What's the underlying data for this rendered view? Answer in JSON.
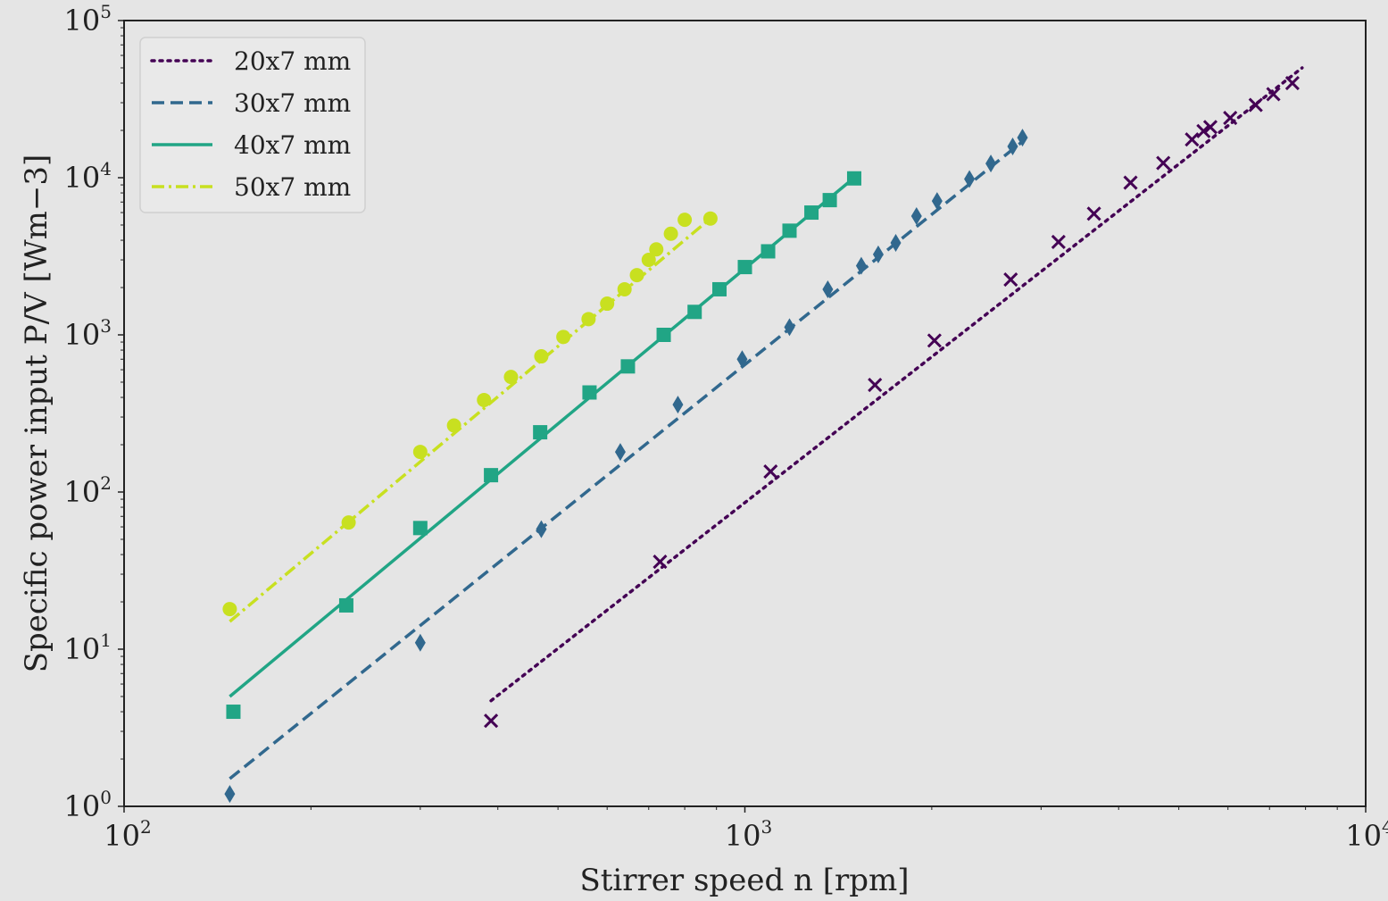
{
  "chart_data": {
    "type": "scatter",
    "xlabel": "Stirrer speed n [rpm]",
    "ylabel": "Specific power input P/V [Wm−3]",
    "x_scale": "log",
    "y_scale": "log",
    "xlim": [
      100,
      10000
    ],
    "ylim": [
      1,
      100000
    ],
    "x_ticks": [
      {
        "base": "10",
        "exp": "2"
      },
      {
        "base": "10",
        "exp": "3"
      },
      {
        "base": "10",
        "exp": "4"
      }
    ],
    "y_ticks": [
      {
        "base": "10",
        "exp": "0"
      },
      {
        "base": "10",
        "exp": "1"
      },
      {
        "base": "10",
        "exp": "2"
      },
      {
        "base": "10",
        "exp": "3"
      },
      {
        "base": "10",
        "exp": "4"
      },
      {
        "base": "10",
        "exp": "5"
      }
    ],
    "grid": false,
    "legend_position": "top-left",
    "background": "#e5e5e5",
    "series": [
      {
        "name": "20x7 mm",
        "color": "#440154",
        "marker": "x",
        "line_style": "dotted",
        "fit_line": [
          [
            390,
            4.7
          ],
          [
            7900,
            50000
          ]
        ],
        "x": [
          390,
          730,
          1100,
          1620,
          2020,
          2680,
          3200,
          3650,
          4180,
          4720,
          5250,
          5480,
          5620,
          6050,
          6650,
          7100,
          7620
        ],
        "y": [
          3.5,
          36,
          135,
          480,
          920,
          2250,
          3900,
          5900,
          9300,
          12400,
          17500,
          19800,
          21000,
          24000,
          29000,
          34000,
          40000
        ]
      },
      {
        "name": "30x7 mm",
        "color": "#31688e",
        "marker": "diamond",
        "line_style": "dashed",
        "fit_line": [
          [
            148,
            1.5
          ],
          [
            2800,
            17000
          ]
        ],
        "x": [
          148,
          300,
          470,
          630,
          780,
          990,
          1180,
          1360,
          1540,
          1640,
          1750,
          1890,
          2040,
          2300,
          2490,
          2700,
          2800
        ],
        "y": [
          1.2,
          11,
          58,
          180,
          360,
          700,
          1120,
          1950,
          2750,
          3250,
          3850,
          5700,
          7100,
          9800,
          12300,
          15800,
          18000
        ]
      },
      {
        "name": "40x7 mm",
        "color": "#21a585",
        "marker": "square",
        "line_style": "solid",
        "fit_line": [
          [
            148,
            5
          ],
          [
            1500,
            10000
          ]
        ],
        "x": [
          150,
          228,
          300,
          390,
          468,
          562,
          648,
          740,
          830,
          910,
          1000,
          1090,
          1180,
          1280,
          1370,
          1500
        ],
        "y": [
          4,
          19,
          59,
          128,
          240,
          430,
          630,
          1000,
          1400,
          1950,
          2700,
          3400,
          4600,
          6000,
          7200,
          9900
        ]
      },
      {
        "name": "50x7 mm",
        "color": "#c8e020",
        "marker": "circle",
        "line_style": "dashdot",
        "fit_line": [
          [
            148,
            15
          ],
          [
            880,
            5500
          ]
        ],
        "x": [
          148,
          230,
          300,
          340,
          380,
          420,
          470,
          510,
          560,
          600,
          640,
          670,
          700,
          720,
          760,
          800,
          880
        ],
        "y": [
          18,
          64,
          180,
          265,
          385,
          540,
          730,
          970,
          1260,
          1580,
          1950,
          2400,
          3000,
          3500,
          4400,
          5400,
          5500
        ]
      }
    ]
  }
}
